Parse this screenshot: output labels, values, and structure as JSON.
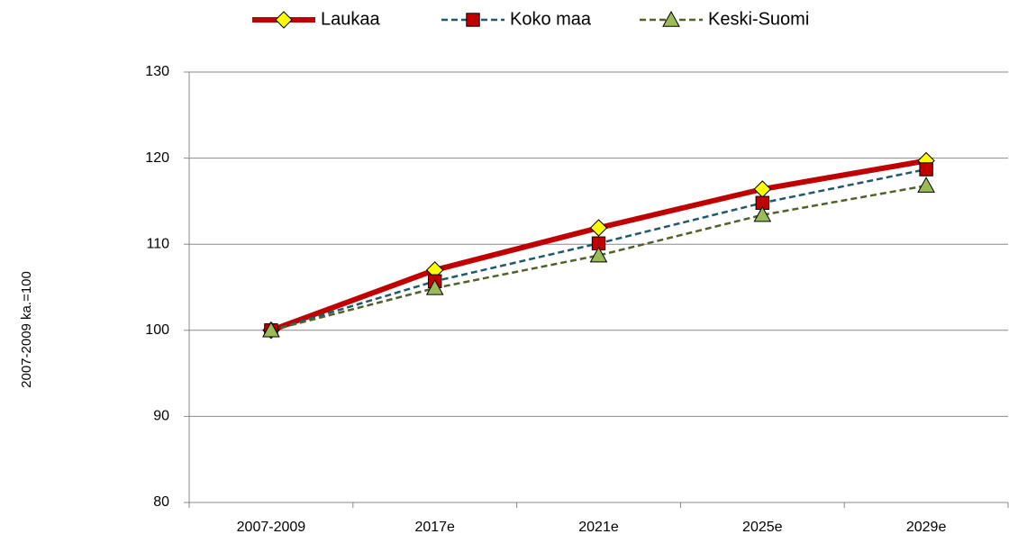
{
  "chart_data": {
    "type": "line",
    "y_label": "2007-2009 ka.=100",
    "categories": [
      "2007-2009",
      "2017e",
      "2021e",
      "2025e",
      "2029e"
    ],
    "series": [
      {
        "name": "Laukaa",
        "color": "#c00000",
        "marker": "diamond",
        "marker_color": "#ffff00",
        "dashed": false,
        "values": [
          100,
          107.0,
          111.9,
          116.4,
          119.7
        ]
      },
      {
        "name": "Koko maa",
        "color": "#215968",
        "marker": "square",
        "marker_color": "#c00000",
        "dashed": true,
        "values": [
          100,
          105.7,
          110.1,
          114.8,
          118.7
        ]
      },
      {
        "name": "Keski-Suomi",
        "color": "#4f6228",
        "marker": "triangle",
        "marker_color": "#9bbb59",
        "dashed": true,
        "values": [
          100,
          104.9,
          108.7,
          113.4,
          116.8
        ]
      }
    ],
    "ylim": [
      80,
      130
    ],
    "yticks": [
      80,
      90,
      100,
      110,
      120,
      130
    ],
    "grid": true,
    "legend": "top"
  }
}
